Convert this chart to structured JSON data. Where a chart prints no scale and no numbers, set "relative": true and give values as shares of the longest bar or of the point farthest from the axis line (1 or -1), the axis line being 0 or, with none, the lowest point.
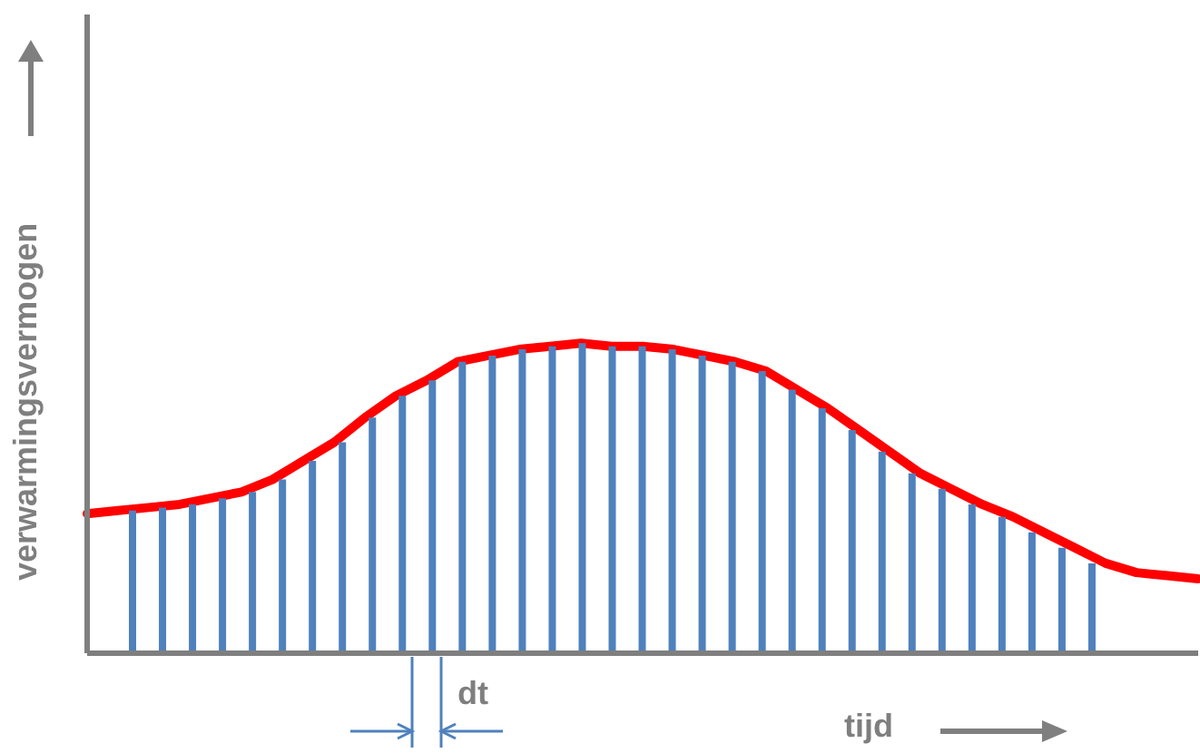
{
  "chart_data": [
    {
      "type": "line",
      "relative": true,
      "xlabel": "tijd",
      "ylabel": "verwarmingsvermogen",
      "annotations": [
        "dt"
      ],
      "grid": false,
      "legend": false,
      "marker": "none",
      "categories": [
        null,
        null,
        null,
        null,
        null,
        null,
        null,
        null,
        null,
        null,
        null,
        null,
        null,
        null,
        null,
        null,
        null,
        null,
        null,
        null,
        null,
        null,
        null,
        null,
        null,
        null,
        null,
        null,
        null,
        null,
        null,
        null,
        null,
        null,
        null,
        null,
        null
      ],
      "series": [
        {
          "color": "#ff0000",
          "values": [
            0.45,
            0.46,
            0.47,
            0.48,
            0.5,
            0.52,
            0.56,
            0.62,
            0.68,
            0.76,
            0.83,
            0.88,
            0.94,
            0.96,
            0.98,
            0.99,
            1,
            0.99,
            0.99,
            0.98,
            0.96,
            0.94,
            0.91,
            0.85,
            0.79,
            0.72,
            0.65,
            0.58,
            0.53,
            0.48,
            0.44,
            0.39,
            0.34,
            0.29,
            0.26,
            0.25,
            0.24
          ]
        }
      ]
    },
    {
      "type": "bar",
      "relative": true,
      "grid": false,
      "legend": false,
      "categories": [
        null,
        null,
        null,
        null,
        null,
        null,
        null,
        null,
        null,
        null,
        null,
        null,
        null,
        null,
        null,
        null,
        null,
        null,
        null,
        null,
        null,
        null,
        null,
        null,
        null,
        null,
        null,
        null,
        null,
        null,
        null,
        null,
        null
      ],
      "series": [
        {
          "color": "#4f81bd",
          "values": [
            0.46,
            0.47,
            0.48,
            0.5,
            0.52,
            0.56,
            0.62,
            0.68,
            0.76,
            0.83,
            0.88,
            0.94,
            0.96,
            0.98,
            0.99,
            1,
            0.99,
            0.99,
            0.98,
            0.96,
            0.94,
            0.91,
            0.85,
            0.79,
            0.72,
            0.65,
            0.58,
            0.53,
            0.48,
            0.44,
            0.39,
            0.34,
            0.29
          ]
        }
      ]
    }
  ]
}
